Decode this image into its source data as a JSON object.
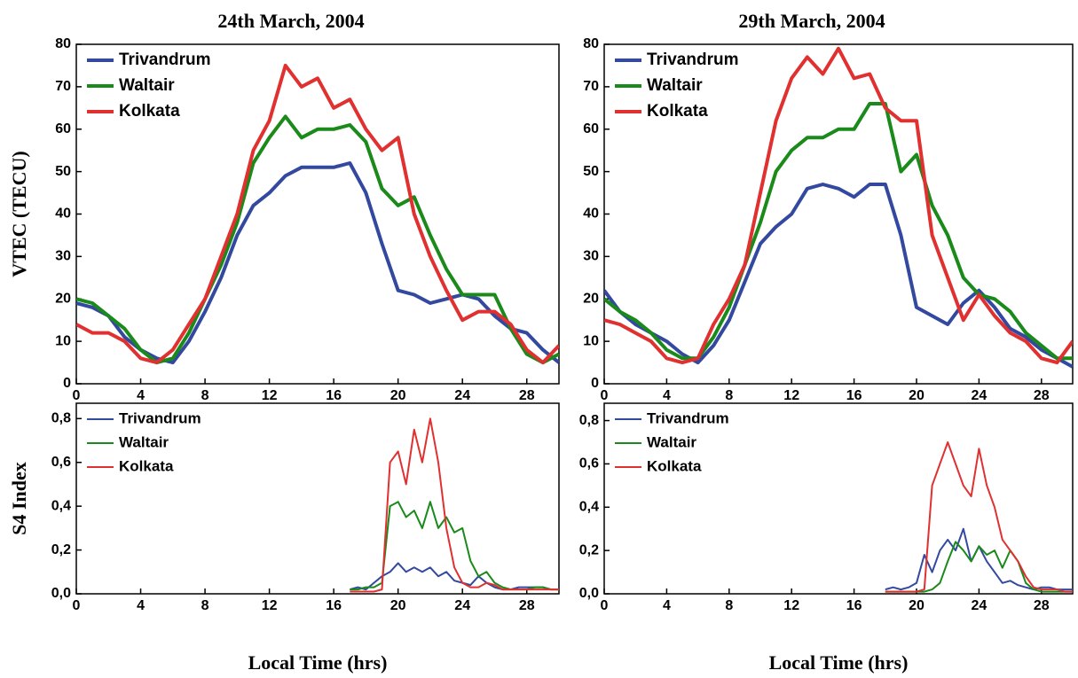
{
  "chart_data": [
    {
      "type": "line",
      "title": "24th March, 2004",
      "y_label": "VTEC (TECU)",
      "legend": "top-left",
      "line_width": 4,
      "x": [
        0,
        1,
        2,
        3,
        4,
        5,
        6,
        7,
        8,
        9,
        10,
        11,
        12,
        13,
        14,
        15,
        16,
        17,
        18,
        19,
        20,
        21,
        22,
        23,
        24,
        25,
        26,
        27,
        28,
        29,
        30
      ],
      "xlim": [
        0,
        30
      ],
      "xticks": [
        0,
        4,
        8,
        12,
        16,
        20,
        24,
        28
      ],
      "ylim": [
        0,
        80
      ],
      "yticks": [
        0,
        10,
        20,
        30,
        40,
        50,
        60,
        70,
        80
      ],
      "series": [
        {
          "name": "Trivandrum",
          "color": "#3349a0",
          "values": [
            19,
            18,
            16,
            11,
            8,
            6,
            5,
            10,
            17,
            25,
            35,
            42,
            45,
            49,
            51,
            51,
            51,
            52,
            45,
            33,
            22,
            21,
            19,
            20,
            21,
            20,
            16,
            13,
            12,
            8,
            5
          ]
        },
        {
          "name": "Waltair",
          "color": "#1a8a1a",
          "values": [
            20,
            19,
            16,
            13,
            8,
            5,
            6,
            12,
            20,
            28,
            38,
            52,
            58,
            63,
            58,
            60,
            60,
            61,
            57,
            46,
            42,
            44,
            35,
            27,
            21,
            21,
            21,
            13,
            7,
            5,
            7
          ]
        },
        {
          "name": "Kolkata",
          "color": "#e03030",
          "values": [
            14,
            12,
            12,
            10,
            6,
            5,
            8,
            14,
            20,
            30,
            40,
            55,
            62,
            75,
            70,
            72,
            65,
            67,
            60,
            55,
            58,
            40,
            30,
            22,
            15,
            17,
            17,
            14,
            8,
            5,
            9
          ]
        }
      ]
    },
    {
      "type": "line",
      "title": "29th March, 2004",
      "legend": "top-left",
      "line_width": 4,
      "x": [
        0,
        1,
        2,
        3,
        4,
        5,
        6,
        7,
        8,
        9,
        10,
        11,
        12,
        13,
        14,
        15,
        16,
        17,
        18,
        19,
        20,
        21,
        22,
        23,
        24,
        25,
        26,
        27,
        28,
        29,
        30
      ],
      "xlim": [
        0,
        30
      ],
      "xticks": [
        0,
        4,
        8,
        12,
        16,
        20,
        24,
        28
      ],
      "ylim": [
        0,
        80
      ],
      "yticks": [
        0,
        10,
        20,
        30,
        40,
        50,
        60,
        70,
        80
      ],
      "series": [
        {
          "name": "Trivandrum",
          "color": "#3349a0",
          "values": [
            22,
            17,
            14,
            12,
            10,
            7,
            5,
            9,
            15,
            24,
            33,
            37,
            40,
            46,
            47,
            46,
            44,
            47,
            47,
            35,
            18,
            16,
            14,
            19,
            22,
            18,
            13,
            11,
            8,
            6,
            4
          ]
        },
        {
          "name": "Waltair",
          "color": "#1a8a1a",
          "values": [
            20,
            17,
            15,
            12,
            8,
            6,
            6,
            11,
            18,
            28,
            38,
            50,
            55,
            58,
            58,
            60,
            60,
            66,
            66,
            50,
            54,
            42,
            35,
            25,
            21,
            20,
            17,
            12,
            9,
            6,
            6
          ]
        },
        {
          "name": "Kolkata",
          "color": "#e03030",
          "values": [
            15,
            14,
            12,
            10,
            6,
            5,
            6,
            14,
            20,
            28,
            45,
            62,
            72,
            77,
            73,
            79,
            72,
            73,
            65,
            62,
            62,
            35,
            25,
            15,
            21,
            16,
            12,
            10,
            6,
            5,
            10
          ]
        }
      ]
    },
    {
      "type": "line",
      "y_label": "S4 Index",
      "x_label": "Local Time (hrs)",
      "legend": "top-left",
      "line_width": 2,
      "x": [
        17,
        17.5,
        18,
        18.5,
        19,
        19.5,
        20,
        20.5,
        21,
        21.5,
        22,
        22.5,
        23,
        23.5,
        24,
        24.5,
        25,
        25.5,
        26,
        26.5,
        27,
        27.5,
        28,
        28.5,
        29,
        29.5,
        30
      ],
      "xlim": [
        0,
        30
      ],
      "xticks": [
        0,
        4,
        8,
        12,
        16,
        20,
        24,
        28
      ],
      "ylim": [
        0,
        0.87
      ],
      "yticks": [
        {
          "value": 0,
          "label": "0,0"
        },
        {
          "value": 0.2,
          "label": "0,2"
        },
        {
          "value": 0.4,
          "label": "0,4"
        },
        {
          "value": 0.6,
          "label": "0,6"
        },
        {
          "value": 0.8,
          "label": "0,8"
        }
      ],
      "series": [
        {
          "name": "Trivandrum",
          "color": "#3349a0",
          "values": [
            0.02,
            0.03,
            0.02,
            0.05,
            0.08,
            0.1,
            0.14,
            0.1,
            0.12,
            0.1,
            0.12,
            0.08,
            0.1,
            0.06,
            0.05,
            0.04,
            0.08,
            0.05,
            0.03,
            0.02,
            0.02,
            0.03,
            0.03,
            0.03,
            0.03,
            0.02,
            0.02
          ]
        },
        {
          "name": "Waltair",
          "color": "#1a8a1a",
          "values": [
            0.02,
            0.02,
            0.03,
            0.03,
            0.05,
            0.4,
            0.42,
            0.35,
            0.38,
            0.3,
            0.42,
            0.3,
            0.35,
            0.28,
            0.3,
            0.15,
            0.08,
            0.1,
            0.05,
            0.03,
            0.02,
            0.02,
            0.02,
            0.03,
            0.03,
            0.02,
            0.02
          ]
        },
        {
          "name": "Kolkata",
          "color": "#e03030",
          "values": [
            0.01,
            0.01,
            0.01,
            0.01,
            0.02,
            0.6,
            0.65,
            0.5,
            0.75,
            0.6,
            0.8,
            0.6,
            0.3,
            0.12,
            0.05,
            0.03,
            0.03,
            0.05,
            0.04,
            0.02,
            0.02,
            0.02,
            0.02,
            0.02,
            0.02,
            0.02,
            0.02
          ]
        }
      ]
    },
    {
      "type": "line",
      "x_label": "Local Time (hrs)",
      "legend": "top-left",
      "line_width": 2,
      "x": [
        18,
        18.5,
        19,
        19.5,
        20,
        20.5,
        21,
        21.5,
        22,
        22.5,
        23,
        23.5,
        24,
        24.5,
        25,
        25.5,
        26,
        26.5,
        27,
        27.5,
        28,
        28.5,
        29,
        29.5,
        30
      ],
      "xlim": [
        0,
        30
      ],
      "xticks": [
        0,
        4,
        8,
        12,
        16,
        20,
        24,
        28
      ],
      "ylim": [
        0,
        0.88
      ],
      "yticks": [
        {
          "value": 0,
          "label": "0,0"
        },
        {
          "value": 0.2,
          "label": "0,2"
        },
        {
          "value": 0.4,
          "label": "0,4"
        },
        {
          "value": 0.6,
          "label": "0,6"
        },
        {
          "value": 0.8,
          "label": "0,8"
        }
      ],
      "series": [
        {
          "name": "Trivandrum",
          "color": "#3349a0",
          "values": [
            0.02,
            0.03,
            0.02,
            0.03,
            0.05,
            0.18,
            0.1,
            0.2,
            0.25,
            0.2,
            0.3,
            0.15,
            0.22,
            0.15,
            0.1,
            0.05,
            0.06,
            0.04,
            0.03,
            0.02,
            0.03,
            0.03,
            0.02,
            0.02,
            0.02
          ]
        },
        {
          "name": "Waltair",
          "color": "#1a8a1a",
          "values": [
            0.01,
            0.01,
            0.01,
            0.01,
            0.01,
            0.01,
            0.02,
            0.05,
            0.15,
            0.24,
            0.2,
            0.15,
            0.22,
            0.18,
            0.2,
            0.12,
            0.2,
            0.15,
            0.05,
            0.02,
            0.01,
            0.01,
            0.01,
            0.01,
            0.01
          ]
        },
        {
          "name": "Kolkata",
          "color": "#e03030",
          "values": [
            0.01,
            0.01,
            0.01,
            0.01,
            0.01,
            0.02,
            0.5,
            0.6,
            0.7,
            0.6,
            0.5,
            0.45,
            0.67,
            0.5,
            0.4,
            0.25,
            0.2,
            0.15,
            0.08,
            0.03,
            0.02,
            0.02,
            0.02,
            0.01,
            0.01
          ]
        }
      ]
    }
  ]
}
